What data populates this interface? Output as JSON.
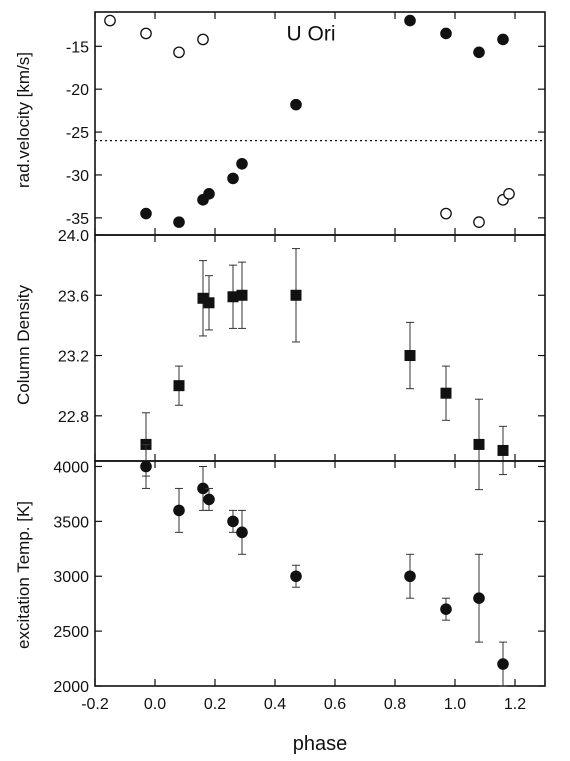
{
  "chart_data": [
    {
      "type": "scatter",
      "ylabel": "rad.velocity [km/s]",
      "ylim": [
        -37,
        -11
      ],
      "yticks": [
        -35,
        -30,
        -25,
        -20,
        -15
      ],
      "reference_line": {
        "y": -26,
        "style": "dotted"
      },
      "annotation": "U Ori",
      "series": [
        {
          "marker": "filled-circle",
          "x": [
            -0.03,
            0.08,
            0.16,
            0.18,
            0.26,
            0.29,
            0.47,
            0.85,
            0.97,
            1.08,
            1.16
          ],
          "y": [
            -34.5,
            -35.5,
            -32.9,
            -32.2,
            -30.4,
            -28.7,
            -21.8,
            -12.0,
            -13.5,
            -15.7,
            -14.2
          ]
        },
        {
          "marker": "open-circle",
          "x": [
            -0.15,
            -0.03,
            0.08,
            0.16,
            0.97,
            1.08,
            1.16,
            1.18
          ],
          "y": [
            -12.0,
            -13.5,
            -15.7,
            -14.2,
            -34.5,
            -35.5,
            -32.9,
            -32.2
          ]
        }
      ]
    },
    {
      "type": "scatter",
      "ylabel": "Column Density",
      "ylim": [
        22.5,
        24.0
      ],
      "yticks": [
        22.8,
        23.2,
        23.6,
        24.0
      ],
      "ytick_labels": [
        "22.8",
        "23.2",
        "23.6",
        "24.0"
      ],
      "series": [
        {
          "marker": "filled-square",
          "x": [
            -0.03,
            0.08,
            0.16,
            0.18,
            0.26,
            0.29,
            0.47,
            0.85,
            0.97,
            1.08,
            1.16
          ],
          "y": [
            22.61,
            23.0,
            23.58,
            23.55,
            23.59,
            23.6,
            23.6,
            23.2,
            22.95,
            22.61,
            22.57
          ],
          "err": [
            0.21,
            0.13,
            0.25,
            0.18,
            0.21,
            0.22,
            0.31,
            0.22,
            0.18,
            0.3,
            0.16
          ]
        }
      ]
    },
    {
      "type": "scatter",
      "ylabel": "excitation Temp. [K]",
      "xlabel": "phase",
      "ylim": [
        2000,
        4050
      ],
      "yticks": [
        2000,
        2500,
        3000,
        3500,
        4000
      ],
      "series": [
        {
          "marker": "filled-circle",
          "x": [
            -0.03,
            0.08,
            0.16,
            0.18,
            0.26,
            0.29,
            0.47,
            0.85,
            0.97,
            1.08,
            1.16
          ],
          "y": [
            4000,
            3600,
            3800,
            3700,
            3500,
            3400,
            3000,
            3000,
            2700,
            2800,
            2200
          ],
          "err": [
            200,
            200,
            200,
            100,
            100,
            200,
            100,
            200,
            100,
            400,
            200
          ]
        }
      ]
    }
  ],
  "xaxis": {
    "xlim": [
      -0.2,
      1.3
    ],
    "xticks": [
      -0.2,
      0.0,
      0.2,
      0.4,
      0.6,
      0.8,
      1.0,
      1.2
    ],
    "xtick_labels": [
      "-0.2",
      "0.0",
      "0.2",
      "0.4",
      "0.6",
      "0.8",
      "1.0",
      "1.2"
    ],
    "xlabel": "phase"
  }
}
